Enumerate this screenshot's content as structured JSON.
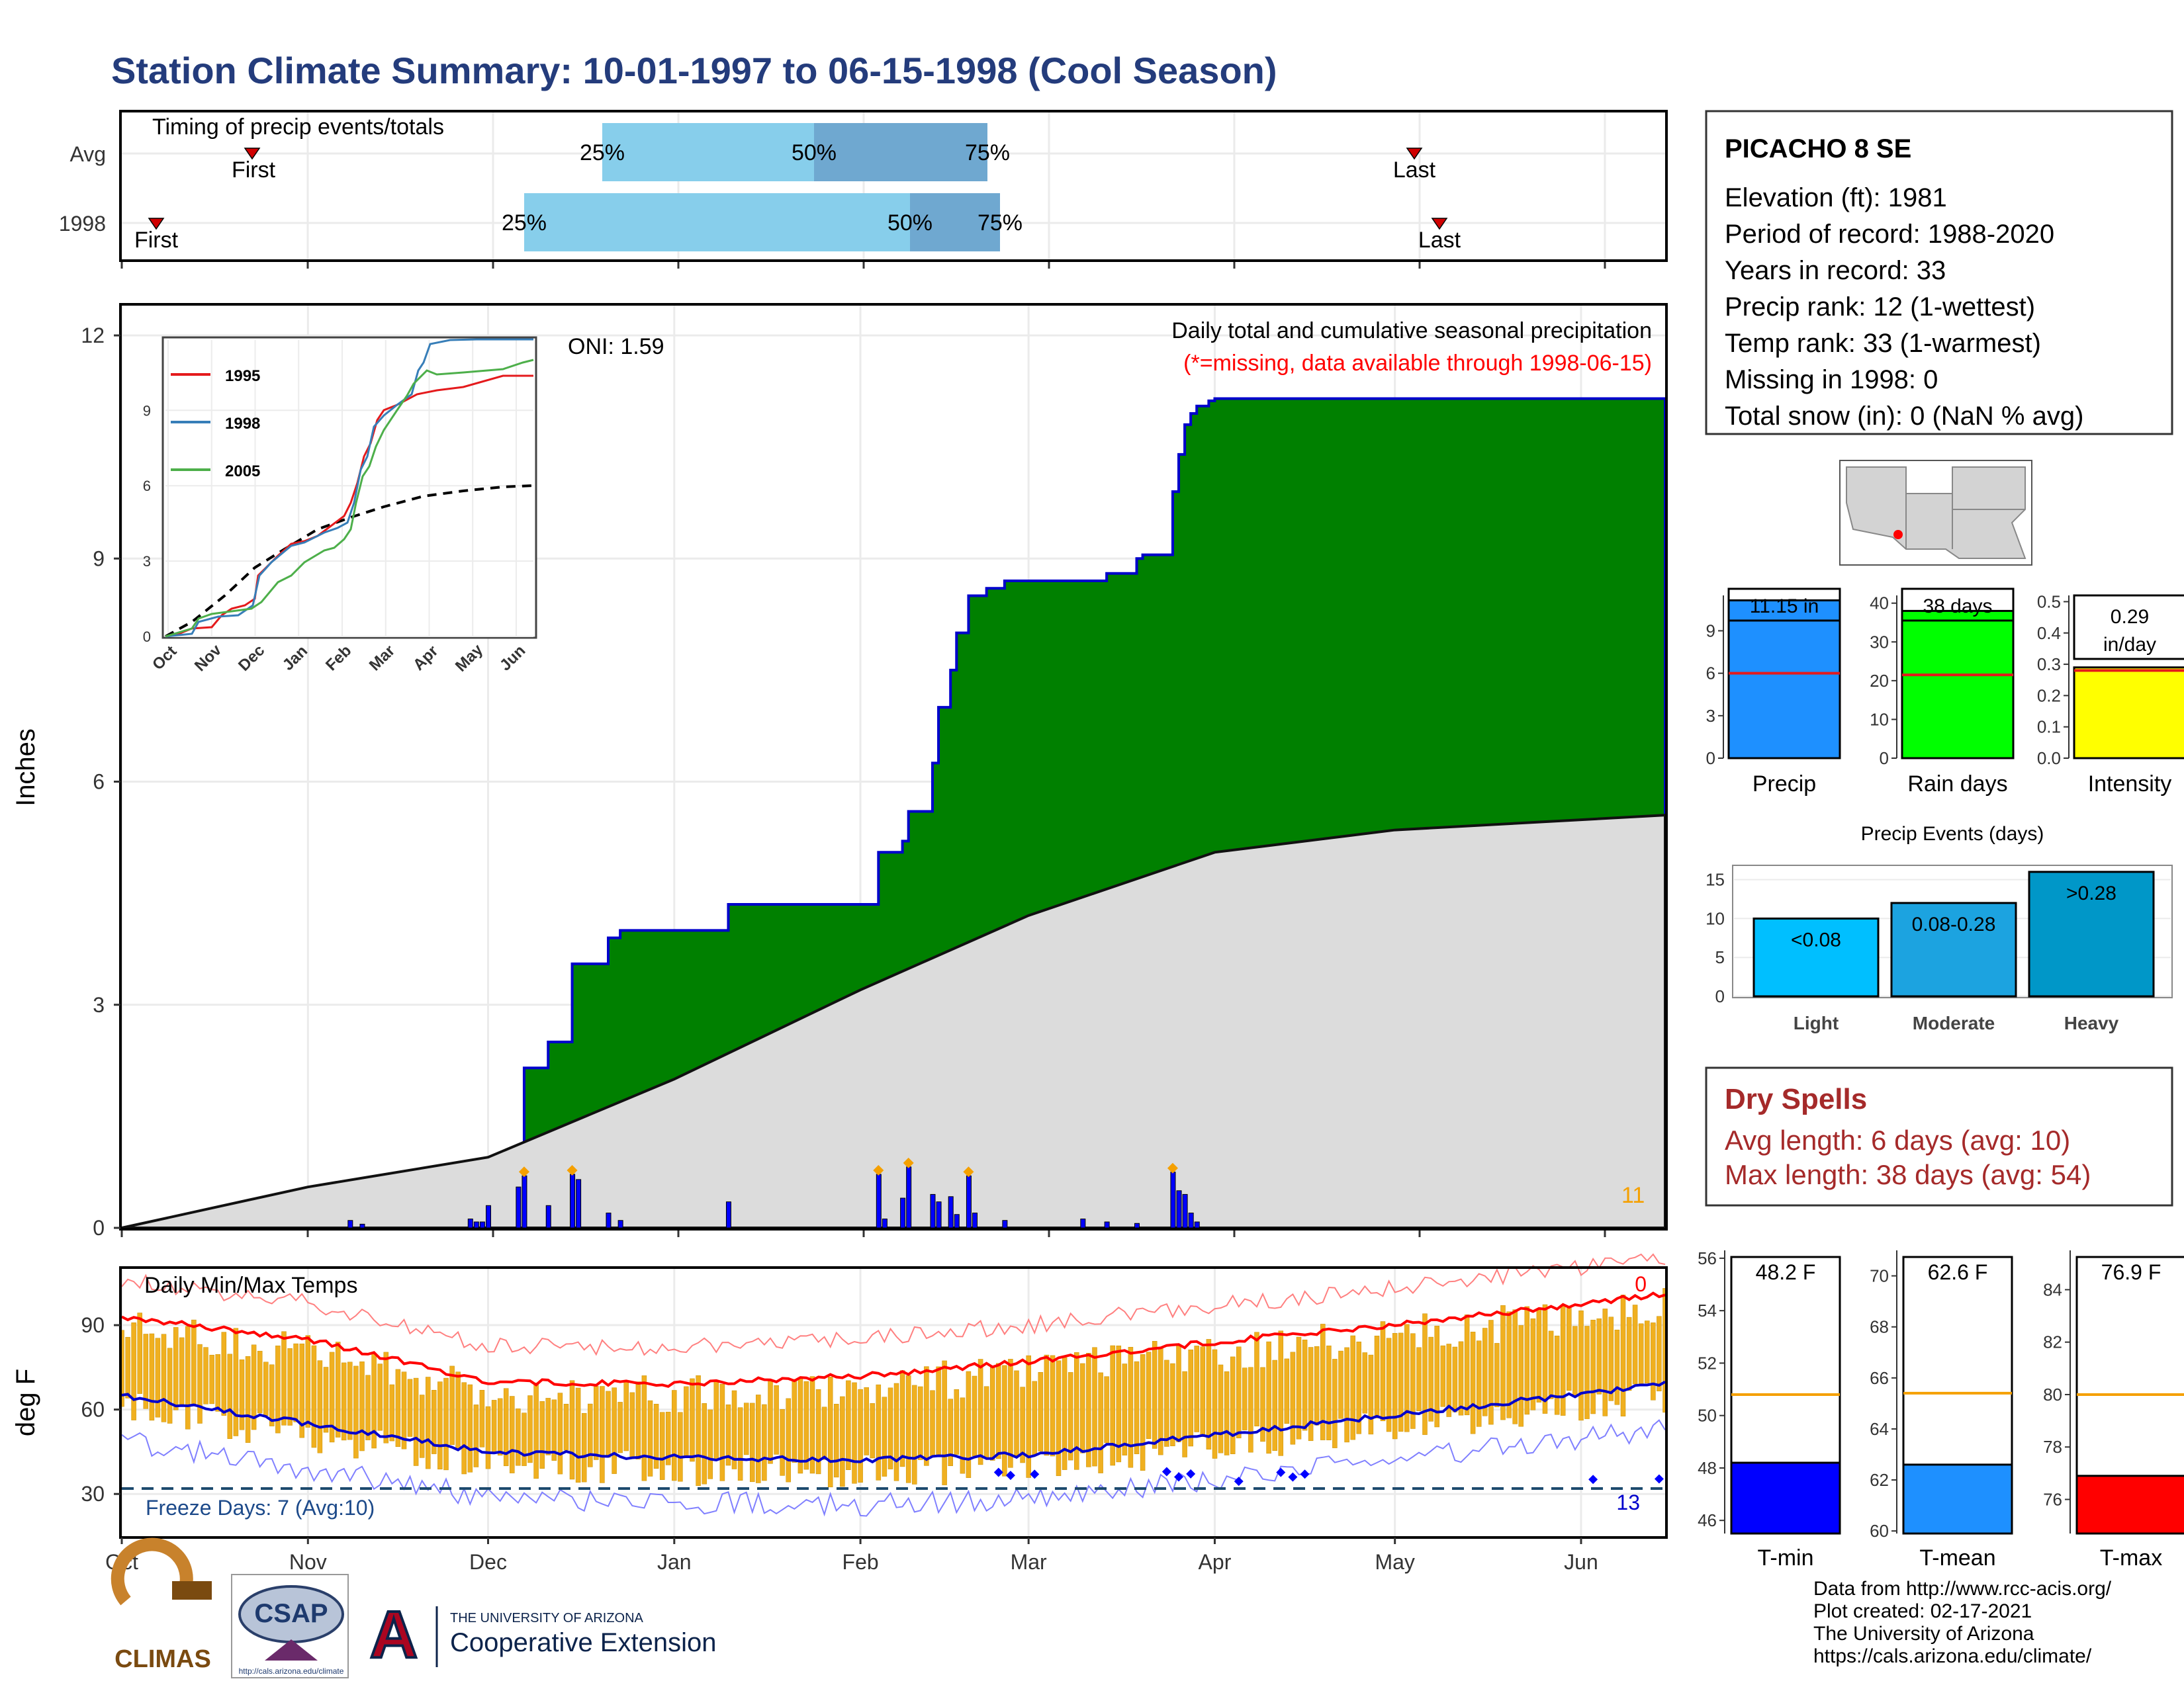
{
  "title": "Station Climate Summary: 10-01-1997 to 06-15-1998 (Cool Season)",
  "timing": {
    "label": "Timing of precip events/totals",
    "rows": [
      "Avg",
      "1998"
    ],
    "first_label": "First",
    "last_label": "Last",
    "p25": "25%",
    "p50": "50%",
    "p75": "75%"
  },
  "main": {
    "ylabel": "Inches",
    "yticks": [
      "0",
      "3",
      "6",
      "9",
      "12"
    ],
    "oni": "ONI: 1.59",
    "subtitle": "Daily total and cumulative seasonal precipitation",
    "missing_note": "(*=missing, data available through 1998-06-15)",
    "count": "11"
  },
  "months": [
    "Oct",
    "Nov",
    "Dec",
    "Jan",
    "Feb",
    "Mar",
    "Apr",
    "May",
    "Jun"
  ],
  "inset": {
    "legend": [
      "1995",
      "1998",
      "2005"
    ],
    "colors": [
      "#e41a1c",
      "#377eb8",
      "#4daf4a"
    ],
    "yticks": [
      "0",
      "3",
      "6",
      "9"
    ],
    "xticks": [
      "Oct",
      "Nov",
      "Dec",
      "Jan",
      "Feb",
      "Mar",
      "Apr",
      "May",
      "Jun"
    ]
  },
  "temps": {
    "label": "Daily Min/Max Temps",
    "ylabel": "deg F",
    "yticks": [
      "30",
      "60",
      "90"
    ],
    "freeze": "Freeze Days: 7 (Avg:10)",
    "count_hot": "0",
    "count_cold": "13"
  },
  "station": {
    "name": "PICACHO 8 SE",
    "lines": [
      "Elevation (ft): 1981",
      "Period of record: 1988-2020",
      "Years in record: 33",
      "Precip rank: 12 (1-wettest)",
      "Temp rank: 33 (1-warmest)",
      "Missing in 1998: 0",
      "Total snow (in): 0 (NaN % avg)"
    ]
  },
  "summary_bars": [
    {
      "label": "Precip",
      "value_text": "11.15 in",
      "yticks": [
        "0",
        "3",
        "6",
        "9"
      ],
      "color": "#1e90ff"
    },
    {
      "label": "Rain days",
      "value_text": "38 days",
      "yticks": [
        "0",
        "10",
        "20",
        "30",
        "40"
      ],
      "color": "#00ff00"
    },
    {
      "label": "Intensity",
      "value_text": "0.29",
      "value_text2": "in/day",
      "yticks": [
        "0.0",
        "0.1",
        "0.2",
        "0.3",
        "0.4",
        "0.5"
      ],
      "color": "#ffff00"
    }
  ],
  "events": {
    "title": "Precip Events (days)",
    "yticks": [
      "0",
      "5",
      "10",
      "15"
    ],
    "bars": [
      {
        "name": "Light",
        "label": "<0.08",
        "color": "#00bfff"
      },
      {
        "name": "Moderate",
        "label": "0.08-0.28",
        "color": "#1ca3e0"
      },
      {
        "name": "Heavy",
        "label": ">0.28",
        "color": "#0097c8"
      }
    ]
  },
  "dry": {
    "title": "Dry Spells",
    "avg": "Avg length: 6 days (avg: 10)",
    "max": "Max length: 38 days (avg: 54)"
  },
  "temp_bars": [
    {
      "label": "T-min",
      "value_text": "48.2 F",
      "yticks": [
        "46",
        "48",
        "50",
        "52",
        "54",
        "56"
      ],
      "color": "#0000ff"
    },
    {
      "label": "T-mean",
      "value_text": "62.6 F",
      "yticks": [
        "60",
        "62",
        "64",
        "66",
        "68",
        "70"
      ],
      "color": "#1e90ff"
    },
    {
      "label": "T-max",
      "value_text": "76.9 F",
      "yticks": [
        "76",
        "78",
        "80",
        "82",
        "84"
      ],
      "color": "#ff0000"
    }
  ],
  "credits": [
    "Data from http://www.rcc-acis.org/",
    "Plot created: 02-17-2021",
    "The University of Arizona",
    "https://cals.arizona.edu/climate/"
  ],
  "logos": {
    "climas": "CLIMAS",
    "csap": "CSAP",
    "csap_url": "http://cals.arizona.edu/climate",
    "ua_top": "THE UNIVERSITY OF ARIZONA",
    "ua_bottom": "Cooperative Extension"
  },
  "chart_data": [
    {
      "type": "area",
      "title": "Daily total and cumulative seasonal precipitation",
      "ylabel": "Inches",
      "ylim": [
        0,
        12
      ],
      "x_start": "1997-10-01",
      "x_end": "1998-06-15",
      "series": [
        {
          "name": "1998",
          "color": "#0000cc",
          "x": [
            "1997-10-01",
            "1997-11-08",
            "1997-11-28",
            "1997-12-02",
            "1997-12-03",
            "1997-12-06",
            "1997-12-07",
            "1997-12-11",
            "1997-12-15",
            "1997-12-16",
            "1997-12-21",
            "1997-12-23",
            "1998-01-10",
            "1998-02-04",
            "1998-02-08",
            "1998-02-09",
            "1998-02-13",
            "1998-02-14",
            "1998-02-16",
            "1998-02-17",
            "1998-02-19",
            "1998-02-20",
            "1998-02-22",
            "1998-02-23",
            "1998-02-25",
            "1998-03-10",
            "1998-03-14",
            "1998-03-19",
            "1998-03-20",
            "1998-03-25",
            "1998-03-26",
            "1998-03-27",
            "1998-03-28",
            "1998-03-29",
            "1998-03-31",
            "1998-04-01",
            "1998-06-15"
          ],
          "y": [
            0,
            0,
            0,
            0.6,
            0.9,
            0.95,
            2.15,
            2.5,
            3.55,
            3.55,
            3.9,
            4.0,
            4.35,
            5.05,
            5.2,
            5.6,
            6.25,
            7.0,
            7.5,
            8.0,
            8.5,
            8.5,
            8.6,
            8.6,
            8.7,
            8.7,
            8.8,
            9.0,
            9.05,
            9.9,
            10.4,
            10.8,
            10.95,
            11.05,
            11.12,
            11.15,
            11.15
          ]
        },
        {
          "name": "Avg",
          "color": "#222222",
          "x": [
            "1997-10-01",
            "1997-11-01",
            "1997-12-01",
            "1998-01-01",
            "1998-02-01",
            "1998-03-01",
            "1998-04-01",
            "1998-05-01",
            "1998-06-15"
          ],
          "y": [
            0,
            0.55,
            0.95,
            2.0,
            3.2,
            4.2,
            5.05,
            5.35,
            5.55
          ]
        }
      ]
    },
    {
      "type": "bar",
      "title": "Precip Events (days)",
      "categories": [
        "Light",
        "Moderate",
        "Heavy"
      ],
      "values": [
        10,
        12,
        16
      ],
      "ylim": [
        0,
        16
      ]
    },
    {
      "type": "bar",
      "categories": [
        "Precip",
        "Rain days",
        "Intensity"
      ],
      "values": [
        11.15,
        38,
        0.29
      ],
      "averages": [
        6.0,
        21.5,
        0.28
      ]
    },
    {
      "type": "bar",
      "categories": [
        "T-min",
        "T-mean",
        "T-max"
      ],
      "values": [
        48.2,
        62.6,
        76.9
      ],
      "averages": [
        50.8,
        65.4,
        80.0
      ]
    },
    {
      "type": "line",
      "title": "Daily Min/Max Temps",
      "ylabel": "deg F",
      "ylim": [
        15,
        110
      ],
      "series": [
        {
          "name": "Avg max",
          "color": "#ff0000",
          "x": [
            "1997-10-01",
            "1997-11-01",
            "1997-12-01",
            "1998-01-01",
            "1998-02-01",
            "1998-03-01",
            "1998-04-01",
            "1998-05-01",
            "1998-06-15"
          ],
          "y": [
            93,
            85,
            70,
            69,
            72,
            77,
            84,
            90,
            101
          ]
        },
        {
          "name": "Avg min",
          "color": "#0000cc",
          "x": [
            "1997-10-01",
            "1997-11-01",
            "1997-12-01",
            "1998-01-01",
            "1998-02-01",
            "1998-03-01",
            "1998-04-01",
            "1998-05-01",
            "1998-06-15"
          ],
          "y": [
            65,
            55,
            45,
            43,
            42,
            44,
            51,
            58,
            69
          ]
        }
      ],
      "freeze_line": 32
    }
  ]
}
